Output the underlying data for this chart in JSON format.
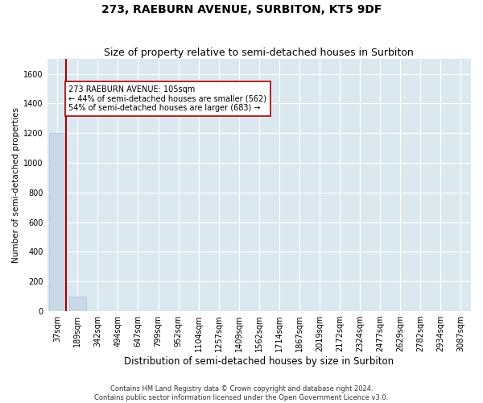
{
  "title1": "273, RAEBURN AVENUE, SURBITON, KT5 9DF",
  "title2": "Size of property relative to semi-detached houses in Surbiton",
  "xlabel": "Distribution of semi-detached houses by size in Surbiton",
  "ylabel": "Number of semi-detached properties",
  "annotation_line1": "273 RAEBURN AVENUE: 105sqm",
  "annotation_line2": "← 44% of semi-detached houses are smaller (562)",
  "annotation_line3": "54% of semi-detached houses are larger (683) →",
  "footer1": "Contains HM Land Registry data © Crown copyright and database right 2024.",
  "footer2": "Contains public sector information licensed under the Open Government Licence v3.0.",
  "bin_labels": [
    "37sqm",
    "189sqm",
    "342sqm",
    "494sqm",
    "647sqm",
    "799sqm",
    "952sqm",
    "1104sqm",
    "1257sqm",
    "1409sqm",
    "1562sqm",
    "1714sqm",
    "1867sqm",
    "2019sqm",
    "2172sqm",
    "2324sqm",
    "2477sqm",
    "2629sqm",
    "2782sqm",
    "2934sqm",
    "3087sqm"
  ],
  "bin_values": [
    1200,
    97,
    0,
    0,
    0,
    0,
    0,
    0,
    0,
    0,
    0,
    0,
    0,
    0,
    0,
    0,
    0,
    0,
    0,
    0,
    0
  ],
  "bar_color": "#c9d9e8",
  "bar_edge_color": "#a8c0d6",
  "vline_x": 0.45,
  "vline_color": "#aa0000",
  "vline_linewidth": 1.5,
  "annotation_box_edgecolor": "#aa0000",
  "annotation_box_facecolor": "white",
  "ylim": [
    0,
    1700
  ],
  "yticks": [
    0,
    200,
    400,
    600,
    800,
    1000,
    1200,
    1400,
    1600
  ],
  "background_color": "#dce8f0",
  "grid_color": "white",
  "title1_fontsize": 10,
  "title2_fontsize": 9,
  "xlabel_fontsize": 8.5,
  "ylabel_fontsize": 7.5,
  "tick_fontsize": 7,
  "annotation_fontsize": 7,
  "footer_fontsize": 6
}
